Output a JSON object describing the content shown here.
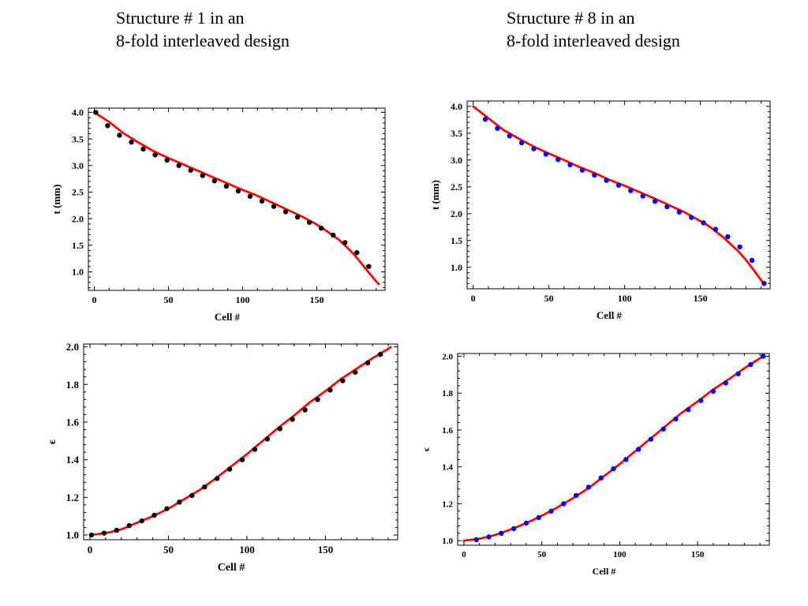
{
  "headings": [
    {
      "line1": "Structure # 1 in an",
      "line2": "8-fold interleaved design"
    },
    {
      "line1": "Structure # 8 in an",
      "line2": "8-fold interleaved design"
    }
  ],
  "colors": {
    "fit_curve": "#ff0000",
    "markers_structure_1": "#000000",
    "markers_structure_8": "#0000ff"
  },
  "chart_data": [
    {
      "type": "scatter",
      "panel": "top-left",
      "xlabel": "Cell #",
      "ylabel": "t (mm)",
      "xlim": [
        -4,
        196
      ],
      "ylim": [
        0.65,
        4.08
      ],
      "xticks": [
        0,
        50,
        100,
        150
      ],
      "yticks": [
        1.0,
        1.5,
        2.0,
        2.5,
        3.0,
        3.5,
        4.0
      ],
      "grid": false,
      "series": [
        {
          "style": "dotted-line",
          "color": "#ff0000",
          "x": [
            0,
            10,
            20,
            30,
            40,
            50,
            60,
            70,
            80,
            90,
            100,
            110,
            120,
            130,
            140,
            150,
            155,
            160,
            165,
            170,
            175,
            180,
            184,
            187,
            190,
            192
          ],
          "y": [
            4.0,
            3.82,
            3.6,
            3.43,
            3.27,
            3.14,
            3.02,
            2.9,
            2.78,
            2.66,
            2.54,
            2.43,
            2.3,
            2.17,
            2.04,
            1.89,
            1.8,
            1.7,
            1.6,
            1.47,
            1.33,
            1.16,
            1.02,
            0.92,
            0.82,
            0.76
          ]
        },
        {
          "style": "markers",
          "color": "#000000",
          "x": [
            1,
            9,
            17,
            25,
            33,
            41,
            49,
            57,
            65,
            73,
            81,
            89,
            97,
            105,
            113,
            121,
            129,
            137,
            145,
            153,
            161,
            169,
            177,
            185
          ],
          "y": [
            4.0,
            3.75,
            3.57,
            3.44,
            3.31,
            3.2,
            3.1,
            3.0,
            2.91,
            2.81,
            2.71,
            2.61,
            2.52,
            2.42,
            2.33,
            2.23,
            2.13,
            2.03,
            1.93,
            1.82,
            1.69,
            1.55,
            1.36,
            1.1
          ]
        }
      ]
    },
    {
      "type": "scatter",
      "panel": "top-right",
      "xlabel": "Cell #",
      "ylabel": "t (mm)",
      "xlim": [
        -4,
        196
      ],
      "ylim": [
        0.6,
        4.1
      ],
      "xticks": [
        0,
        50,
        100,
        150
      ],
      "yticks": [
        1.0,
        1.5,
        2.0,
        2.5,
        3.0,
        3.5,
        4.0
      ],
      "grid": false,
      "series": [
        {
          "style": "dotted-line",
          "color": "#ff0000",
          "x": [
            0,
            10,
            20,
            30,
            40,
            50,
            60,
            70,
            80,
            90,
            100,
            110,
            120,
            130,
            140,
            150,
            155,
            160,
            165,
            170,
            175,
            180,
            184,
            187,
            190,
            192
          ],
          "y": [
            4.0,
            3.78,
            3.56,
            3.4,
            3.25,
            3.12,
            3.0,
            2.87,
            2.76,
            2.63,
            2.52,
            2.4,
            2.28,
            2.15,
            2.02,
            1.86,
            1.78,
            1.67,
            1.56,
            1.43,
            1.3,
            1.14,
            0.99,
            0.88,
            0.76,
            0.7
          ]
        },
        {
          "style": "markers",
          "color": "#0000ff",
          "x": [
            8,
            16,
            24,
            32,
            40,
            48,
            56,
            64,
            72,
            80,
            88,
            96,
            104,
            112,
            120,
            128,
            136,
            144,
            152,
            160,
            168,
            176,
            184,
            192
          ],
          "y": [
            3.76,
            3.59,
            3.45,
            3.32,
            3.21,
            3.11,
            3.01,
            2.91,
            2.81,
            2.72,
            2.62,
            2.53,
            2.43,
            2.33,
            2.23,
            2.13,
            2.03,
            1.93,
            1.83,
            1.71,
            1.57,
            1.38,
            1.13,
            0.7
          ]
        }
      ]
    },
    {
      "type": "scatter",
      "panel": "bottom-left",
      "xlabel": "Cell #",
      "ylabel": "ϵ",
      "xlim": [
        -4,
        196
      ],
      "ylim": [
        0.975,
        2.015
      ],
      "xticks": [
        0,
        50,
        100,
        150
      ],
      "yticks": [
        1.0,
        1.2,
        1.4,
        1.6,
        1.8,
        2.0
      ],
      "grid": false,
      "series": [
        {
          "style": "dotted-line",
          "color": "#ff0000",
          "x": [
            0,
            10,
            20,
            30,
            40,
            50,
            60,
            70,
            80,
            90,
            100,
            110,
            120,
            130,
            140,
            150,
            160,
            170,
            180,
            192
          ],
          "y": [
            1.0,
            1.01,
            1.03,
            1.065,
            1.1,
            1.14,
            1.19,
            1.24,
            1.3,
            1.365,
            1.43,
            1.5,
            1.57,
            1.635,
            1.705,
            1.765,
            1.83,
            1.885,
            1.94,
            2.0
          ]
        },
        {
          "style": "markers",
          "color": "#000000",
          "x": [
            1,
            9,
            17,
            25,
            33,
            41,
            49,
            57,
            65,
            73,
            81,
            89,
            97,
            105,
            113,
            121,
            129,
            137,
            145,
            153,
            161,
            169,
            177,
            185
          ],
          "y": [
            1.0,
            1.01,
            1.025,
            1.05,
            1.075,
            1.105,
            1.14,
            1.175,
            1.21,
            1.255,
            1.3,
            1.35,
            1.4,
            1.455,
            1.51,
            1.565,
            1.615,
            1.665,
            1.72,
            1.77,
            1.82,
            1.865,
            1.915,
            1.96
          ]
        }
      ]
    },
    {
      "type": "scatter",
      "panel": "bottom-right",
      "xlabel": "Cell #",
      "ylabel": "ϵ",
      "xlim": [
        -4,
        196
      ],
      "ylim": [
        0.975,
        2.015
      ],
      "xticks": [
        0,
        50,
        100,
        150
      ],
      "yticks": [
        1.0,
        1.2,
        1.4,
        1.6,
        1.8,
        2.0
      ],
      "grid": false,
      "series": [
        {
          "style": "dotted-line",
          "color": "#ff0000",
          "x": [
            0,
            10,
            20,
            30,
            40,
            50,
            60,
            70,
            80,
            90,
            100,
            110,
            120,
            130,
            140,
            150,
            160,
            170,
            180,
            192
          ],
          "y": [
            1.0,
            1.01,
            1.03,
            1.06,
            1.095,
            1.135,
            1.18,
            1.23,
            1.285,
            1.35,
            1.415,
            1.485,
            1.555,
            1.625,
            1.695,
            1.755,
            1.82,
            1.875,
            1.935,
            2.0
          ]
        },
        {
          "style": "markers",
          "color": "#0000ff",
          "x": [
            8,
            16,
            24,
            32,
            40,
            48,
            56,
            64,
            72,
            80,
            88,
            96,
            104,
            112,
            120,
            128,
            136,
            144,
            152,
            160,
            168,
            176,
            184,
            192
          ],
          "y": [
            1.005,
            1.02,
            1.04,
            1.065,
            1.095,
            1.125,
            1.16,
            1.2,
            1.245,
            1.29,
            1.34,
            1.39,
            1.44,
            1.495,
            1.55,
            1.605,
            1.66,
            1.71,
            1.76,
            1.81,
            1.855,
            1.905,
            1.955,
            2.0
          ]
        }
      ]
    }
  ]
}
